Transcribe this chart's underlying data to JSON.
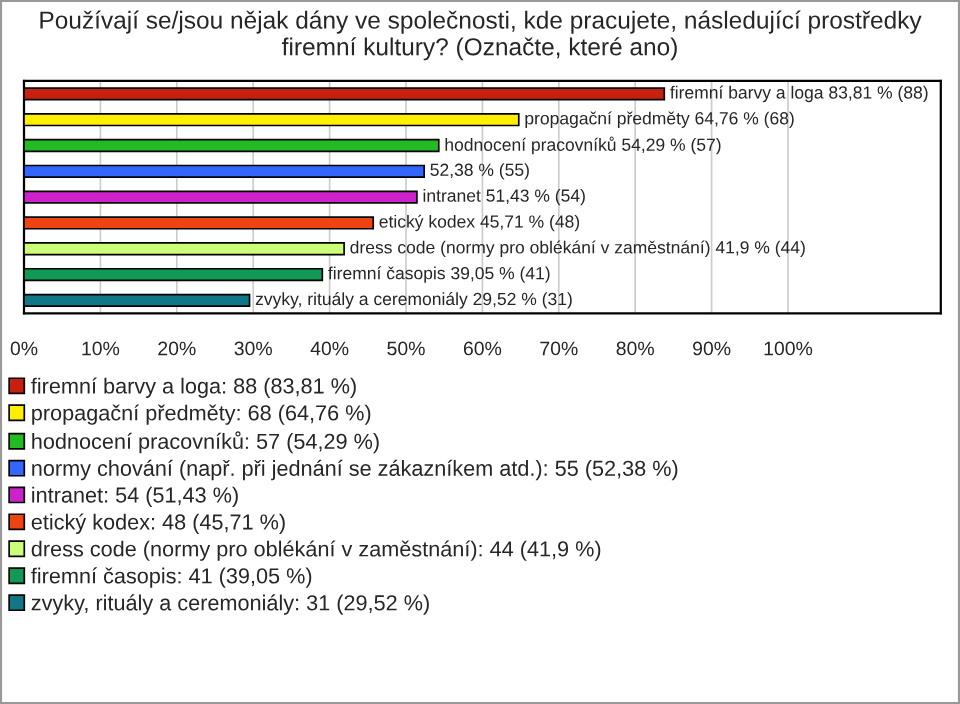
{
  "chart_data": {
    "type": "bar",
    "orientation": "horizontal",
    "title": "Používají se/jsou nějak dány ve společnosti, kde pracujete, následující prostředky firemní kultury? (Označte, které ano)",
    "categories": [
      null,
      null,
      null,
      null,
      null,
      null,
      null,
      null,
      null
    ],
    "series": [
      {
        "name": "firemní barvy a loga: 88 (83,81 %)",
        "color": "#c8200e",
        "values": [
          83.81,
          null,
          null,
          null,
          null,
          null,
          null,
          null,
          null
        ],
        "value_labels": [
          "firemní barvy a loga 83,81 % (88)",
          null,
          null,
          null,
          null,
          null,
          null,
          null,
          null
        ]
      },
      {
        "name": "propagační předměty: 68 (64,76 %)",
        "color": "#ffee00",
        "values": [
          null,
          64.76,
          null,
          null,
          null,
          null,
          null,
          null,
          null
        ],
        "value_labels": [
          null,
          "propagační předměty 64,76 % (68)",
          null,
          null,
          null,
          null,
          null,
          null,
          null
        ]
      },
      {
        "name": "hodnocení pracovníků: 57 (54,29 %)",
        "color": "#22bb22",
        "values": [
          null,
          null,
          54.29,
          null,
          null,
          null,
          null,
          null,
          null
        ],
        "value_labels": [
          null,
          null,
          "hodnocení pracovníků 54,29 % (57)",
          null,
          null,
          null,
          null,
          null,
          null
        ]
      },
      {
        "name": "normy chování (např. při jednání se zákazníkem atd.): 55 (52,38 %)",
        "color": "#3366ff",
        "values": [
          null,
          null,
          null,
          52.38,
          null,
          null,
          null,
          null,
          null
        ],
        "value_labels": [
          null,
          null,
          null,
          "52,38 % (55)",
          null,
          null,
          null,
          null,
          null
        ]
      },
      {
        "name": "intranet: 54 (51,43 %)",
        "color": "#cc22cc",
        "values": [
          null,
          null,
          null,
          null,
          51.43,
          null,
          null,
          null,
          null
        ],
        "value_labels": [
          null,
          null,
          null,
          null,
          "intranet 51,43 % (54)",
          null,
          null,
          null,
          null
        ]
      },
      {
        "name": "etický kodex: 48 (45,71 %)",
        "color": "#ee4411",
        "values": [
          null,
          null,
          null,
          null,
          null,
          45.71,
          null,
          null,
          null
        ],
        "value_labels": [
          null,
          null,
          null,
          null,
          null,
          "etický kodex 45,71 % (48)",
          null,
          null,
          null
        ]
      },
      {
        "name": "dress code (normy pro oblékání v zaměstnání): 44 (41,9 %)",
        "color": "#ccff77",
        "values": [
          null,
          null,
          null,
          null,
          null,
          null,
          41.9,
          null,
          null
        ],
        "value_labels": [
          null,
          null,
          null,
          null,
          null,
          null,
          "dress code (normy pro oblékání v zaměstnání) 41,9 % (44)",
          null,
          null
        ]
      },
      {
        "name": "firemní časopis: 41 (39,05 %)",
        "color": "#119955",
        "values": [
          null,
          null,
          null,
          null,
          null,
          null,
          null,
          39.05,
          null
        ],
        "value_labels": [
          null,
          null,
          null,
          null,
          null,
          null,
          null,
          "firemní časopis 39,05 % (41)",
          null
        ]
      },
      {
        "name": "zvyky, rituály a ceremoniály: 31 (29,52 %)",
        "color": "#117788",
        "values": [
          null,
          null,
          null,
          null,
          null,
          null,
          null,
          null,
          29.52
        ],
        "value_labels": [
          null,
          null,
          null,
          null,
          null,
          null,
          null,
          null,
          "zvyky, rituály a ceremoniály 29,52 % (31)"
        ]
      }
    ],
    "xlim": [
      0,
      120
    ],
    "xticks": [
      {
        "value": 0,
        "label": "0%"
      },
      {
        "value": 10,
        "label": "10%"
      },
      {
        "value": 20,
        "label": "20%"
      },
      {
        "value": 30,
        "label": "30%"
      },
      {
        "value": 40,
        "label": "40%"
      },
      {
        "value": 50,
        "label": "50%"
      },
      {
        "value": 60,
        "label": "60%"
      },
      {
        "value": 70,
        "label": "70%"
      },
      {
        "value": 80,
        "label": "80%"
      },
      {
        "value": 90,
        "label": "90%"
      },
      {
        "value": 100,
        "label": "100%"
      },
      {
        "value": 120,
        "label": null
      }
    ],
    "tick_labels": "x",
    "grid": "x",
    "legend": "bottom"
  }
}
